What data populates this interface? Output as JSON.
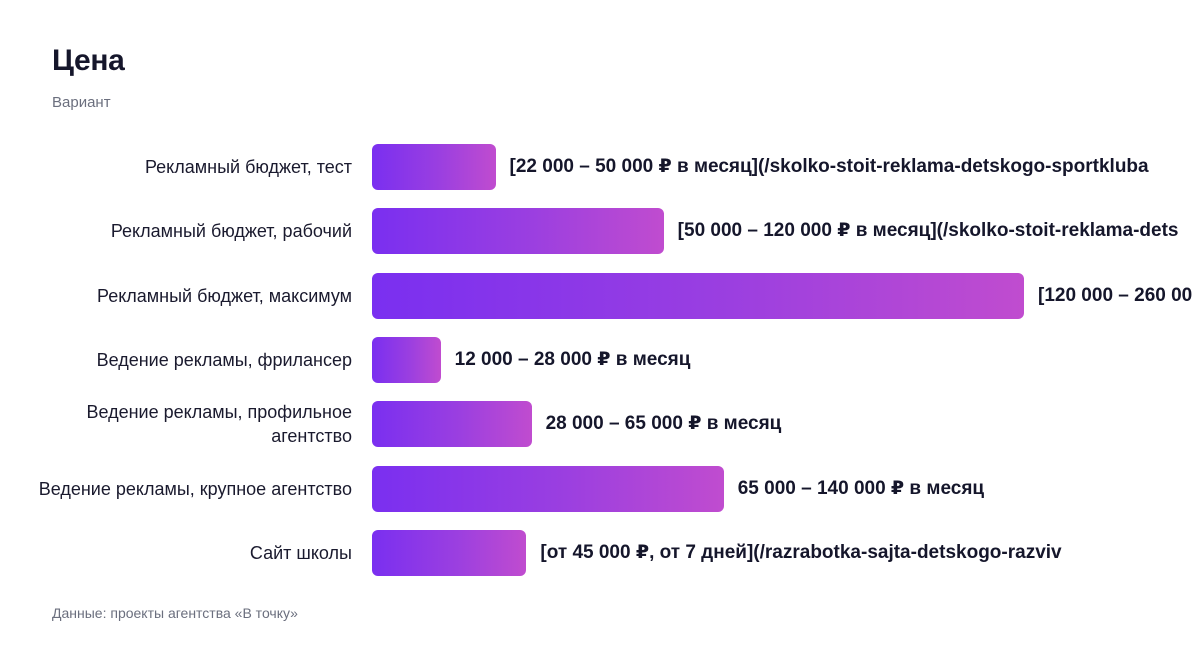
{
  "chart_data": {
    "type": "bar",
    "orientation": "horizontal",
    "title": "Цена",
    "subtitle": "Вариант",
    "source": "Данные: проекты агентства «В точку»",
    "categories": [
      "Рекламный бюджет, тест",
      "Рекламный бюджет, рабочий",
      "Рекламный бюджет, максимум",
      "Ведение рекламы, фрилансер",
      "Ведение рекламы, профильное агентство",
      "Ведение рекламы, крупное агентство",
      "Сайт школы"
    ],
    "values": [
      36000,
      85000,
      190000,
      20000,
      46500,
      102500,
      45000
    ],
    "data_labels": [
      "[22 000 – 50 000 ₽ в месяц](/skolko-stoit-reklama-detskogo-sportkluba",
      "[50 000 – 120 000 ₽ в месяц](/skolko-stoit-reklama-dets",
      "[120 000 – 260 00",
      "12 000 – 28 000 ₽ в месяц",
      "28 000 – 65 000 ₽ в месяц",
      "65 000 – 140 000 ₽ в месяц",
      "[от 45 000 ₽, от 7 дней](/razrabotka-sajta-detskogo-razviv"
    ],
    "xlim": [
      0,
      190000
    ],
    "grid": false,
    "colors": {
      "bar_start": "#7a2ff0",
      "bar_end": "#c04ccf",
      "text": "#15162b",
      "muted": "#6b6f7e"
    }
  }
}
